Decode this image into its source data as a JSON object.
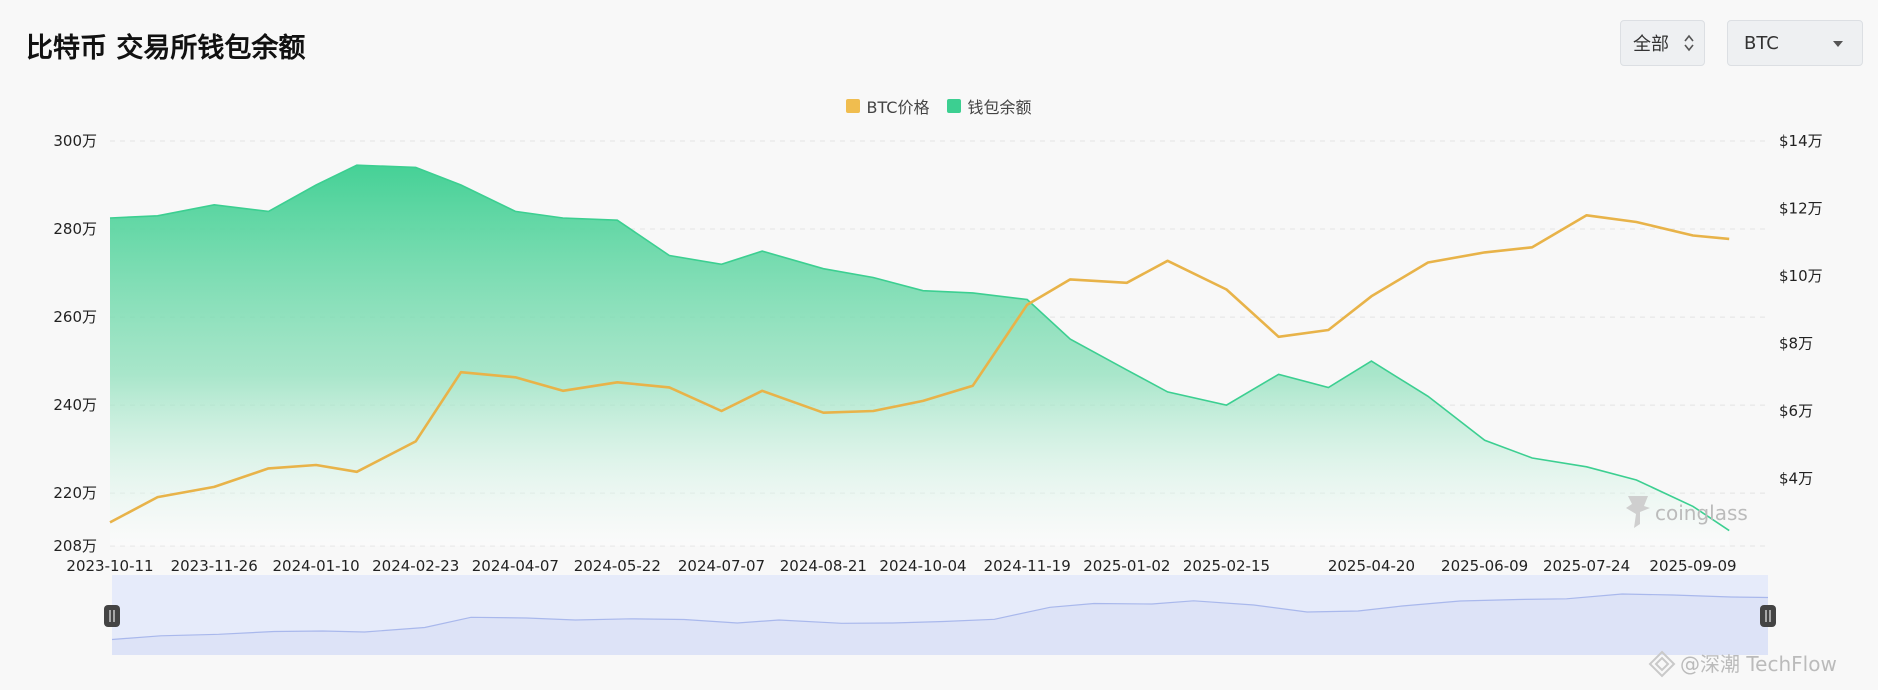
{
  "header": {
    "title": "比特币 交易所钱包余额",
    "range_select": "全部",
    "coin_select": "BTC"
  },
  "legend": [
    {
      "label": "BTC价格",
      "color": "#f0bd4f"
    },
    {
      "label": "钱包余额",
      "color": "#3ccf91"
    }
  ],
  "watermarks": {
    "coinglass": "coinglass",
    "techflow": "@深潮 TechFlow"
  },
  "colors": {
    "price_line": "#e8b349",
    "balance_line": "#3ccf91",
    "navigator_fill": "#dde3f7",
    "navigator_line": "#a9b8ec"
  },
  "chart_data": {
    "type": "line",
    "x_tick_labels": [
      "2023-10-11",
      "2023-11-26",
      "2024-01-10",
      "2024-02-23",
      "2024-04-07",
      "2024-05-22",
      "2024-07-07",
      "2024-08-21",
      "2024-10-04",
      "2024-11-19",
      "2025-01-02",
      "2025-02-15",
      "2025-04-20",
      "2025-06-09",
      "2025-07-24",
      "2025-09-09"
    ],
    "x": [
      "2023-10-11",
      "2023-11-01",
      "2023-11-26",
      "2023-12-20",
      "2024-01-10",
      "2024-01-28",
      "2024-02-23",
      "2024-03-14",
      "2024-04-07",
      "2024-04-28",
      "2024-05-22",
      "2024-06-14",
      "2024-07-07",
      "2024-07-25",
      "2024-08-21",
      "2024-09-12",
      "2024-10-04",
      "2024-10-26",
      "2024-11-19",
      "2024-12-08",
      "2025-01-02",
      "2025-01-20",
      "2025-02-15",
      "2025-03-10",
      "2025-04-01",
      "2025-04-20",
      "2025-05-15",
      "2025-06-09",
      "2025-06-30",
      "2025-07-24",
      "2025-08-15",
      "2025-09-09",
      "2025-09-25"
    ],
    "series": [
      {
        "name": "钱包余额",
        "axis": "left",
        "type": "area",
        "values": [
          282.5,
          283,
          285.5,
          284,
          290,
          294.5,
          294,
          290,
          284,
          282.5,
          282,
          274,
          272,
          275,
          271,
          269,
          266,
          265.5,
          264,
          255,
          248,
          243,
          240,
          247,
          244,
          250,
          242,
          232,
          228,
          226,
          223,
          217,
          211.5
        ]
      },
      {
        "name": "BTC价格",
        "axis": "right",
        "type": "line",
        "values": [
          27000,
          34500,
          37500,
          43000,
          44000,
          42000,
          51000,
          71500,
          70000,
          66000,
          68500,
          67000,
          60000,
          66000,
          59500,
          60000,
          63000,
          67500,
          91500,
          99000,
          98000,
          104500,
          96000,
          82000,
          84000,
          94000,
          104000,
          107000,
          108500,
          118000,
          116000,
          112000,
          111000
        ]
      }
    ],
    "y_left": {
      "ticks": [
        "208万",
        "220万",
        "240万",
        "260万",
        "280万",
        "300万"
      ],
      "range": [
        208,
        300
      ],
      "unit": "万"
    },
    "y_right": {
      "ticks": [
        "$4万",
        "$6万",
        "$8万",
        "$10万",
        "$12万",
        "$14万"
      ],
      "range": [
        20000,
        140000
      ]
    },
    "grid": "horizontal dashed",
    "legend_position": "top-center",
    "navigator": true
  }
}
